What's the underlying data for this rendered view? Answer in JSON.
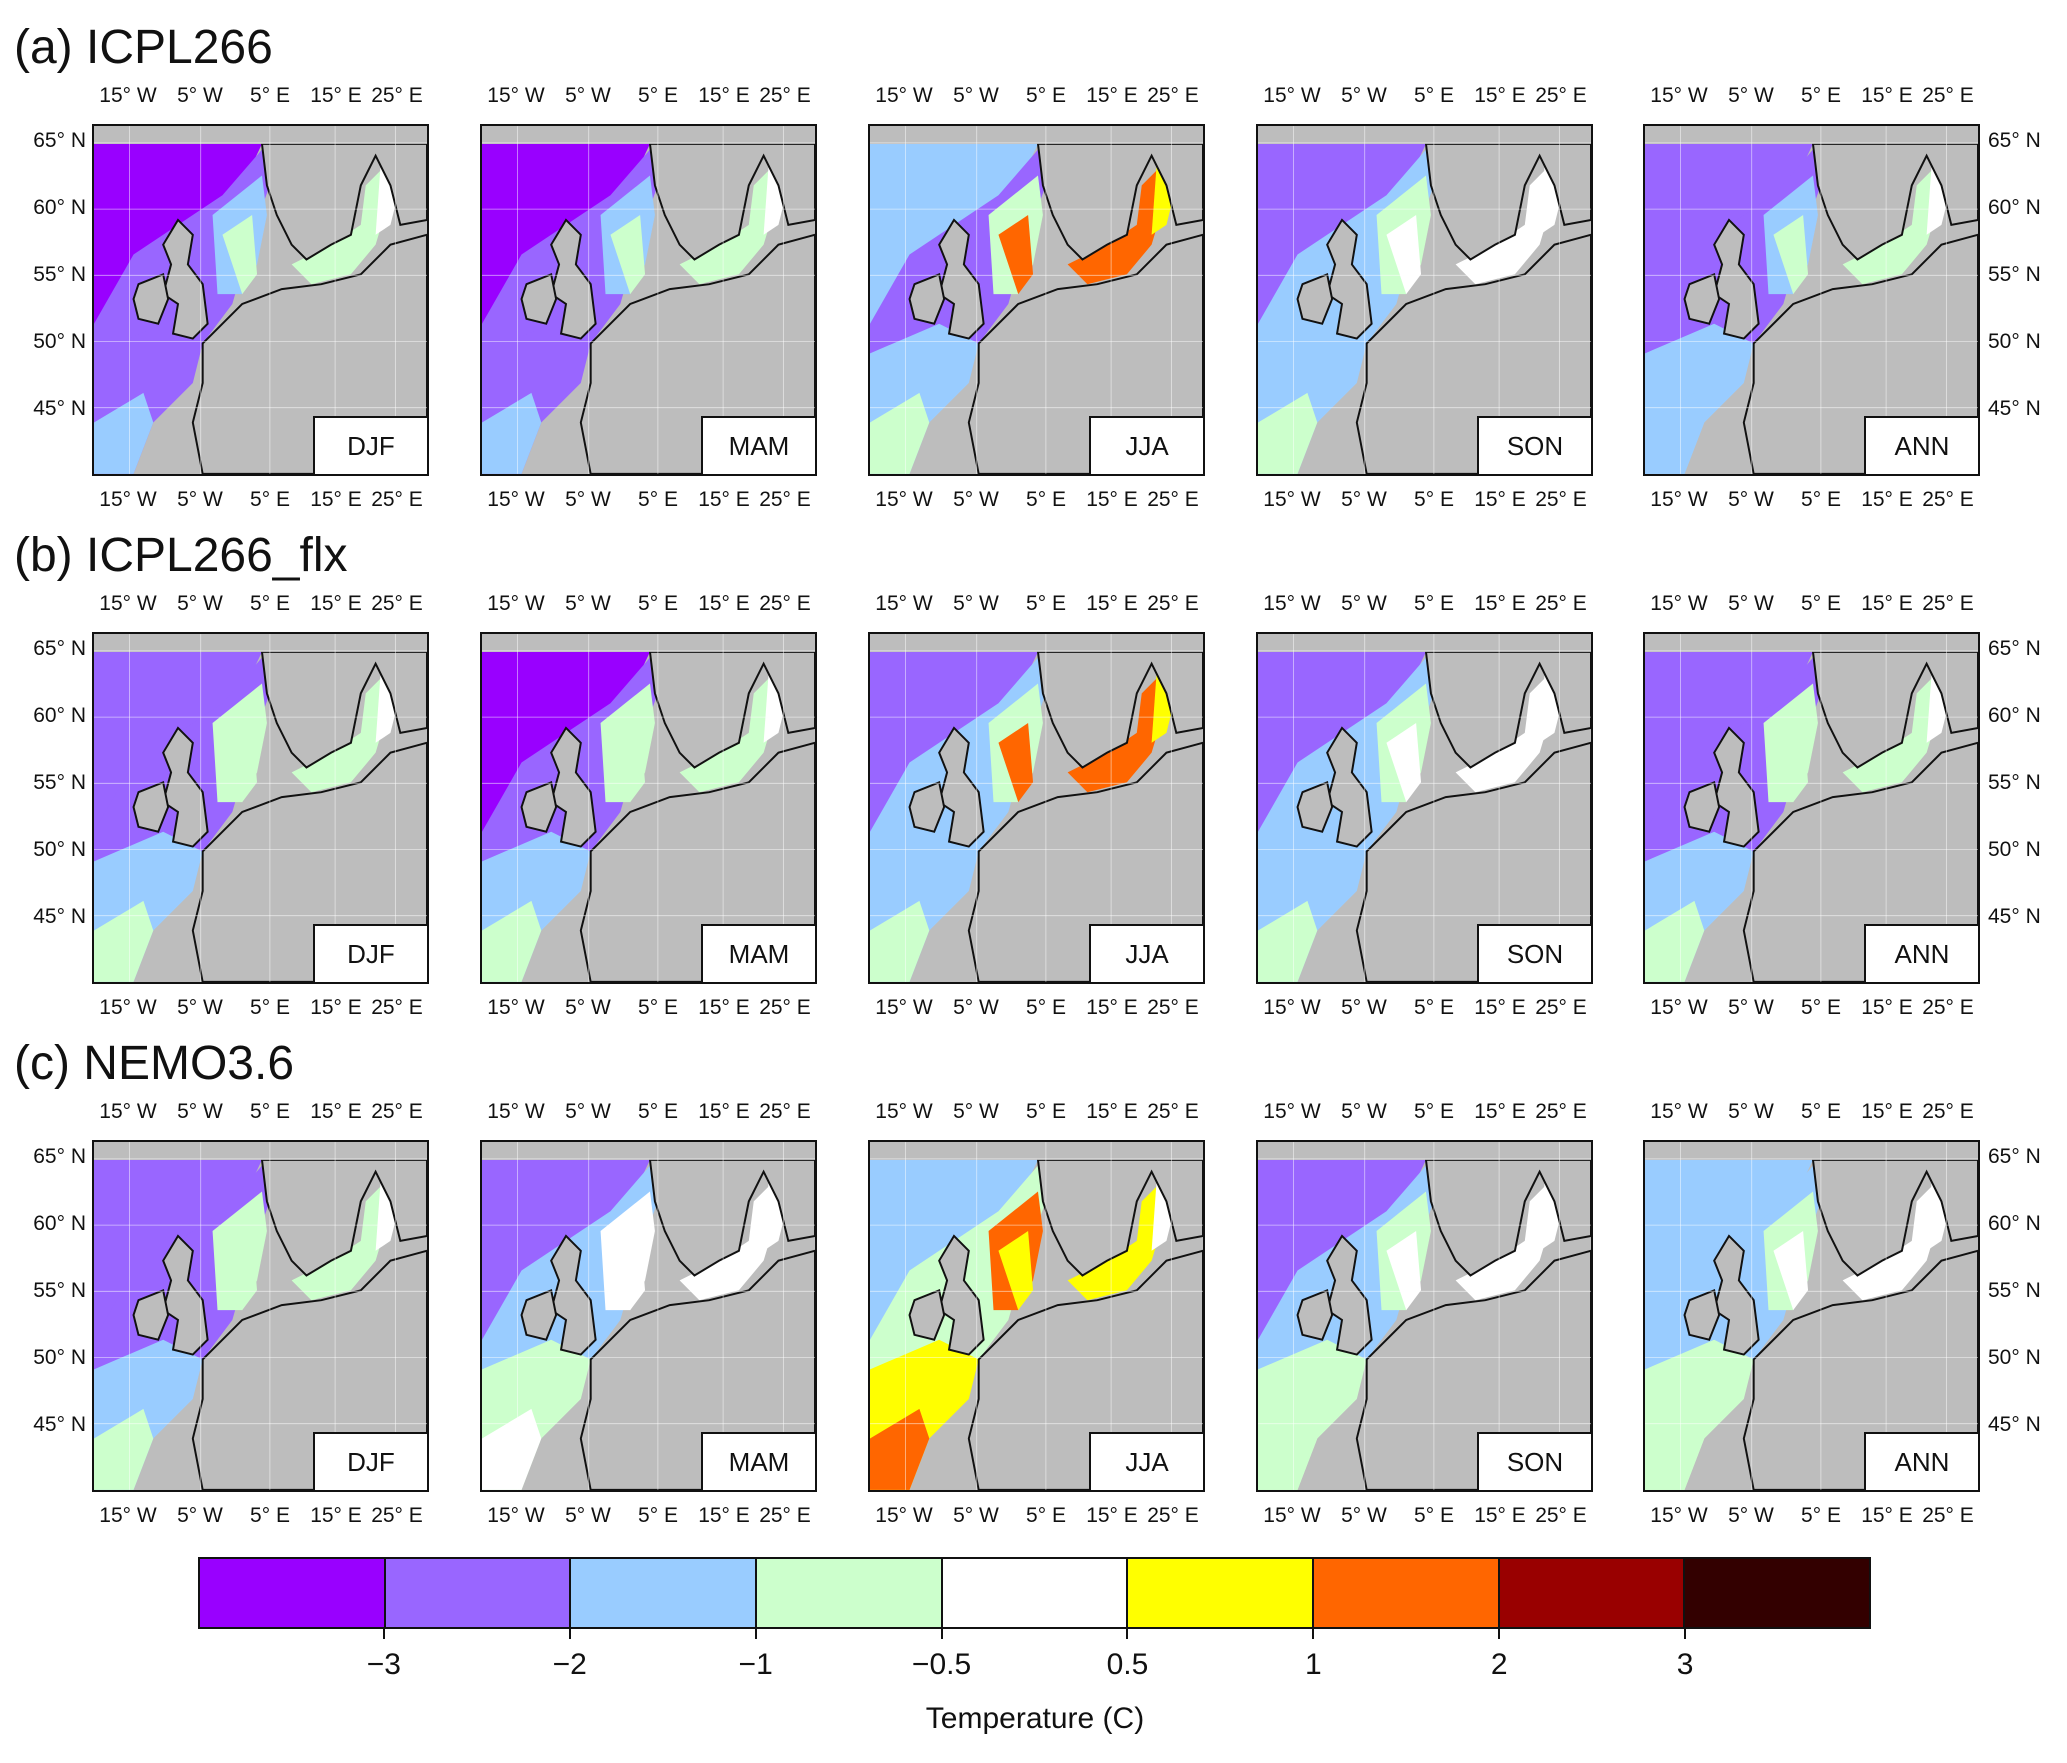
{
  "rows": [
    {
      "title": "(a) ICPL266"
    },
    {
      "title": "(b) ICPL266_flx"
    },
    {
      "title": "(c) NEMO3.6"
    }
  ],
  "seasons": [
    "DJF",
    "MAM",
    "JJA",
    "SON",
    "ANN"
  ],
  "lon_labels": [
    "15° W",
    "5° W",
    "5° E",
    "15° E",
    "25° E"
  ],
  "lat_labels": [
    "65° N",
    "60° N",
    "55° N",
    "50° N",
    "45° N"
  ],
  "colorbar": {
    "title": "Temperature (C)",
    "colors": [
      "#9900ff",
      "#9966ff",
      "#99ccff",
      "#ccffcc",
      "#ffffff",
      "#ffff00",
      "#ff6600",
      "#990000",
      "#330000"
    ],
    "tick_labels": [
      "−3",
      "−2",
      "−1",
      "−0.5",
      "0.5",
      "1",
      "2",
      "3"
    ],
    "boundaries": [
      -3,
      -2,
      -1,
      -0.5,
      0.5,
      1,
      2,
      3
    ]
  },
  "colors": {
    "land": "#bdbdbd",
    "coast": "#111111"
  }
}
